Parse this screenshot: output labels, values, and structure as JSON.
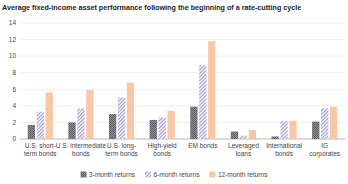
{
  "chart_data": {
    "type": "bar",
    "title": "Average fixed-income asset performance following the beginning of a rate-cutting cycle",
    "categories": [
      "U.S. short-term bonds",
      "U.S. intermediate bonds",
      "U.S. long-term bonds",
      "High-yield bonds",
      "EM bonds",
      "Leveraged loans",
      "International bonds",
      "IG corporates"
    ],
    "series": [
      {
        "name": "3-month returns",
        "color": "#8e8e98",
        "values": [
          1.7,
          2.0,
          3.0,
          2.3,
          3.9,
          0.9,
          0.3,
          2.1
        ]
      },
      {
        "name": "6-month returns",
        "color": "#a9a2d2",
        "values": [
          3.3,
          3.7,
          5.0,
          2.6,
          8.9,
          0.4,
          2.2,
          3.7
        ]
      },
      {
        "name": "12-month returns",
        "color": "#f8c7a6",
        "values": [
          5.6,
          5.9,
          6.8,
          3.4,
          11.8,
          1.1,
          2.2,
          3.9
        ]
      }
    ],
    "ylim": [
      0,
      14
    ],
    "yticks": [
      0,
      2,
      4,
      6,
      8,
      10,
      12,
      14
    ],
    "grid": true,
    "legend": "bottom"
  }
}
